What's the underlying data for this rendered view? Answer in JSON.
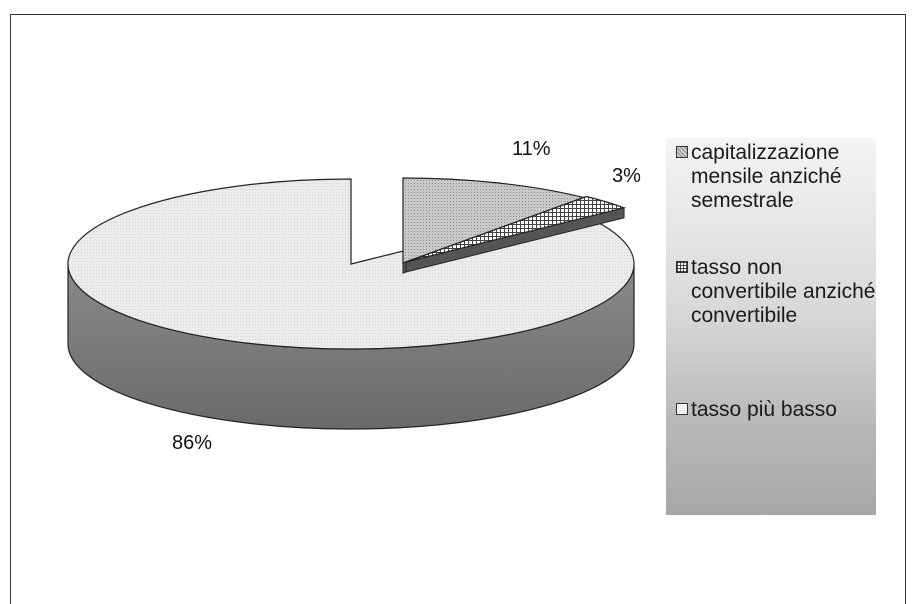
{
  "chart_data": {
    "type": "pie",
    "title": "",
    "slices": [
      {
        "label": "capitalizzazione mensile anziché semestrale",
        "value": 11,
        "display": "11%"
      },
      {
        "label": "tasso non convertibile anziché convertibile",
        "value": 3,
        "display": "3%"
      },
      {
        "label": "tasso più basso",
        "value": 86,
        "display": "86%"
      }
    ],
    "legend_position": "right",
    "three_d": true,
    "exploded_slice": "tasso più basso",
    "colors": {
      "capitalizzazione": "#b8b8b8",
      "tasso_non_convertibile": "#6e6e6e",
      "tasso_piu_basso": "#e6e6e6",
      "side_dark": "#7a7a7a"
    }
  }
}
